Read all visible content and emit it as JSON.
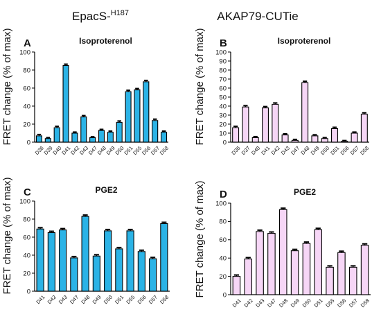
{
  "header": {
    "left_main": "EpacS-",
    "left_sup": "H187",
    "right": "AKAP79-CUTie"
  },
  "ylabel": "FRET change (% of max)",
  "colors": {
    "blue": "#2bb3e6",
    "pink": "#f6d6f6",
    "stroke": "#000000"
  },
  "chart_data": [
    {
      "type": "bar",
      "panel": "A",
      "title": "Isoproterenol",
      "color": "blue",
      "ylim": [
        0,
        100
      ],
      "yticks": [
        0,
        20,
        40,
        60,
        80,
        100
      ],
      "categories": [
        "D36",
        "D39",
        "D40",
        "D41",
        "D42",
        "D43",
        "D47",
        "D48",
        "D49",
        "D50",
        "D51",
        "D55",
        "D56",
        "D57",
        "D58"
      ],
      "values": [
        7,
        4,
        16,
        85,
        10,
        28,
        5,
        13,
        11,
        22,
        56,
        58,
        67,
        24,
        11
      ],
      "errors": [
        1.5,
        1,
        1.5,
        1.5,
        1.2,
        1.5,
        1,
        1.2,
        1.2,
        1.5,
        1.5,
        1.5,
        1.5,
        1.5,
        1.2
      ]
    },
    {
      "type": "bar",
      "panel": "B",
      "title": "Isoproterenol",
      "color": "pink",
      "ylim": [
        0,
        100
      ],
      "yticks": [
        0,
        10,
        20,
        30,
        40,
        50,
        60,
        70,
        80,
        90,
        100
      ],
      "categories": [
        "D36",
        "D37",
        "D40",
        "D41",
        "D42",
        "D43",
        "D47",
        "D48",
        "D49",
        "D50",
        "D51",
        "D56",
        "D57",
        "D58"
      ],
      "values": [
        16,
        39,
        5,
        38,
        42,
        8,
        2,
        66,
        7,
        4,
        15,
        1,
        10,
        31
      ],
      "errors": [
        1.5,
        1.5,
        1.2,
        1.5,
        1.5,
        1.2,
        1,
        1.5,
        1.2,
        1,
        1.5,
        0.8,
        1.2,
        1.5
      ]
    },
    {
      "type": "bar",
      "panel": "C",
      "title": "PGE2",
      "color": "blue",
      "ylim": [
        0,
        100
      ],
      "yticks": [
        0,
        20,
        40,
        60,
        80,
        100
      ],
      "categories": [
        "D41",
        "D42",
        "D43",
        "D47",
        "D48",
        "D49",
        "D50",
        "D51",
        "D55",
        "D56",
        "D57",
        "D58"
      ],
      "values": [
        69,
        65,
        68,
        37,
        83,
        39,
        67,
        47,
        67,
        44,
        36,
        75
      ],
      "errors": [
        1.5,
        1.5,
        1.5,
        1.5,
        1.5,
        1.5,
        1.5,
        1.5,
        1.5,
        1.5,
        1.5,
        1.5
      ]
    },
    {
      "type": "bar",
      "panel": "D",
      "title": "PGE2",
      "color": "pink",
      "ylim": [
        0,
        100
      ],
      "yticks": [
        0,
        20,
        40,
        60,
        80,
        100
      ],
      "categories": [
        "D41",
        "D42",
        "D43",
        "D47",
        "D48",
        "D49",
        "D50",
        "D51",
        "D55",
        "D56",
        "D57",
        "D58"
      ],
      "values": [
        20,
        39,
        69,
        67,
        93,
        48,
        56,
        71,
        30,
        46,
        30,
        54
      ],
      "errors": [
        1.5,
        1.5,
        1.5,
        1.5,
        1.5,
        1.5,
        1.5,
        1.5,
        1.5,
        1.5,
        1.5,
        1.5
      ]
    }
  ]
}
